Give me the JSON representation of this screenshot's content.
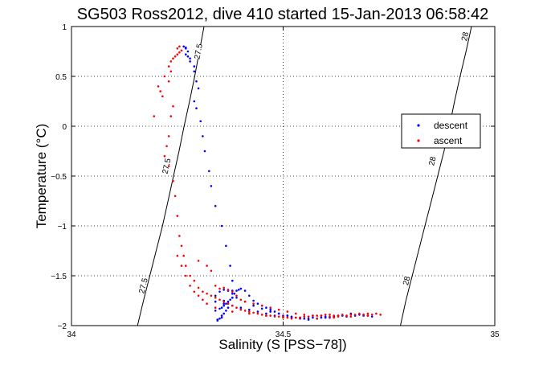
{
  "chart_data": {
    "type": "scatter",
    "title": "SG503 Ross2012, dive 410 started 15-Jan-2013 06:58:42",
    "xlabel": "Salinity (S [PSS−78])",
    "ylabel": "Temperature (°C)",
    "xlim": [
      34,
      35
    ],
    "ylim": [
      -2,
      1
    ],
    "xticks": [
      34,
      34.5,
      35
    ],
    "yticks": [
      -2,
      -1.5,
      -1,
      -0.5,
      0,
      0.5,
      1
    ],
    "xtick_labels": [
      "34",
      "34.5",
      "35"
    ],
    "ytick_labels": [
      "−2",
      "−1.5",
      "−1",
      "−0.5",
      "0",
      "0.5",
      "1"
    ],
    "grid": true,
    "legend_position": "right",
    "contours": [
      {
        "label": "27.5",
        "color": "#000000",
        "points": [
          [
            34.156,
            -2
          ],
          [
            34.17,
            -1.75
          ],
          [
            34.185,
            -1.5
          ],
          [
            34.2,
            -1.25
          ],
          [
            34.215,
            -1
          ],
          [
            34.228,
            -0.75
          ],
          [
            34.241,
            -0.5
          ],
          [
            34.254,
            -0.25
          ],
          [
            34.266,
            0
          ],
          [
            34.279,
            0.25
          ],
          [
            34.291,
            0.5
          ],
          [
            34.302,
            0.75
          ],
          [
            34.313,
            1
          ]
        ],
        "label_positions": [
          [
            34.17,
            -1.6
          ],
          [
            34.225,
            -0.4
          ],
          [
            34.3,
            0.75
          ]
        ]
      },
      {
        "label": "28",
        "color": "#000000",
        "points": [
          [
            34.777,
            -2
          ],
          [
            34.79,
            -1.75
          ],
          [
            34.805,
            -1.5
          ],
          [
            34.82,
            -1.25
          ],
          [
            34.835,
            -1
          ],
          [
            34.85,
            -0.75
          ],
          [
            34.865,
            -0.5
          ],
          [
            34.88,
            -0.25
          ],
          [
            34.893,
            0
          ],
          [
            34.905,
            0.25
          ],
          [
            34.918,
            0.5
          ],
          [
            34.932,
            0.75
          ],
          [
            34.945,
            1
          ]
        ],
        "label_positions": [
          [
            34.792,
            -1.55
          ],
          [
            34.853,
            -0.35
          ],
          [
            34.93,
            0.9
          ]
        ]
      }
    ],
    "series": [
      {
        "name": "descent",
        "color": "#0000ff",
        "marker": ".",
        "x": [
          34.265,
          34.27,
          34.27,
          34.275,
          34.27,
          34.275,
          34.28,
          34.28,
          34.29,
          34.29,
          34.295,
          34.3,
          34.29,
          34.295,
          34.305,
          34.31,
          34.315,
          34.325,
          34.33,
          34.34,
          34.355,
          34.365,
          34.375,
          34.38,
          34.38,
          34.38,
          34.36,
          34.37,
          34.37,
          34.365,
          34.36,
          34.355,
          34.355,
          34.35,
          34.345,
          34.345,
          34.34,
          34.35,
          34.355,
          34.36,
          34.365,
          34.37,
          34.375,
          34.38,
          34.385,
          34.39,
          34.395,
          34.4,
          34.41,
          34.42,
          34.43,
          34.44,
          34.45,
          34.46,
          34.47,
          34.48,
          34.49,
          34.5,
          34.51,
          34.52,
          34.53,
          34.54,
          34.55,
          34.56,
          34.57,
          34.58,
          34.59,
          34.6,
          34.61,
          34.62,
          34.63,
          34.65,
          34.67,
          34.69,
          34.71,
          34.69,
          34.7,
          34.68,
          34.66,
          34.64,
          34.62,
          34.6,
          34.58,
          34.56,
          34.54,
          34.52,
          34.5,
          34.48,
          34.46,
          34.44,
          34.42,
          34.4,
          34.38,
          34.36,
          34.34,
          34.34,
          34.35,
          34.36,
          34.37,
          34.38,
          34.39,
          34.41,
          34.43,
          34.45,
          34.47,
          34.49,
          34.51
        ],
        "y": [
          0.8,
          0.79,
          0.78,
          0.75,
          0.72,
          0.7,
          0.68,
          0.65,
          0.6,
          0.55,
          0.45,
          0.38,
          0.25,
          0.18,
          0.05,
          -0.1,
          -0.25,
          -0.45,
          -0.6,
          -0.8,
          -1.0,
          -1.2,
          -1.4,
          -1.55,
          -1.65,
          -1.72,
          -1.75,
          -1.78,
          -1.82,
          -1.85,
          -1.88,
          -1.9,
          -1.92,
          -1.93,
          -1.94,
          -1.95,
          -1.85,
          -1.83,
          -1.82,
          -1.8,
          -1.78,
          -1.76,
          -1.74,
          -1.72,
          -1.68,
          -1.65,
          -1.64,
          -1.63,
          -1.65,
          -1.7,
          -1.75,
          -1.78,
          -1.8,
          -1.82,
          -1.84,
          -1.86,
          -1.88,
          -1.9,
          -1.9,
          -1.91,
          -1.92,
          -1.92,
          -1.93,
          -1.93,
          -1.92,
          -1.93,
          -1.92,
          -1.91,
          -1.92,
          -1.91,
          -1.9,
          -1.91,
          -1.9,
          -1.9,
          -1.91,
          -1.89,
          -1.9,
          -1.89,
          -1.88,
          -1.9,
          -1.91,
          -1.92,
          -1.93,
          -1.94,
          -1.93,
          -1.92,
          -1.91,
          -1.9,
          -1.88,
          -1.86,
          -1.84,
          -1.82,
          -1.8,
          -1.78,
          -1.76,
          -1.7,
          -1.66,
          -1.64,
          -1.65,
          -1.68,
          -1.72,
          -1.76,
          -1.8,
          -1.83,
          -1.86,
          -1.88,
          -1.9
        ]
      },
      {
        "name": "ascent",
        "color": "#ff0000",
        "marker": ".",
        "x": [
          34.255,
          34.25,
          34.26,
          34.255,
          34.25,
          34.245,
          34.24,
          34.235,
          34.23,
          34.235,
          34.22,
          34.23,
          34.205,
          34.21,
          34.215,
          34.195,
          34.24,
          34.235,
          34.23,
          34.225,
          34.22,
          34.23,
          34.24,
          34.245,
          34.25,
          34.255,
          34.26,
          34.265,
          34.27,
          34.28,
          34.29,
          34.3,
          34.31,
          34.32,
          34.33,
          34.34,
          34.35,
          34.36,
          34.37,
          34.38,
          34.39,
          34.4,
          34.41,
          34.42,
          34.43,
          34.44,
          34.45,
          34.46,
          34.47,
          34.48,
          34.49,
          34.5,
          34.51,
          34.52,
          34.53,
          34.54,
          34.55,
          34.56,
          34.57,
          34.58,
          34.59,
          34.6,
          34.61,
          34.62,
          34.63,
          34.64,
          34.65,
          34.66,
          34.67,
          34.68,
          34.69,
          34.7,
          34.71,
          34.72,
          34.73,
          34.7,
          34.66,
          34.62,
          34.58,
          34.54,
          34.5,
          34.46,
          34.42,
          34.38,
          34.34,
          34.32,
          34.31,
          34.3,
          34.29,
          34.28,
          34.27,
          34.26,
          34.25,
          34.3,
          34.32,
          34.33,
          34.34,
          34.35,
          34.36,
          34.37,
          34.38,
          34.39,
          34.4,
          34.41,
          34.43,
          34.45,
          34.47,
          34.49,
          34.51,
          34.53,
          34.55,
          34.57,
          34.59,
          34.61,
          34.63
        ],
        "y": [
          0.8,
          0.78,
          0.76,
          0.74,
          0.72,
          0.7,
          0.68,
          0.65,
          0.6,
          0.55,
          0.5,
          0.45,
          0.4,
          0.35,
          0.3,
          0.1,
          0.2,
          0.1,
          -0.1,
          -0.2,
          -0.3,
          -0.4,
          -0.55,
          -0.7,
          -0.9,
          -1.1,
          -1.2,
          -1.3,
          -1.4,
          -1.5,
          -1.55,
          -1.62,
          -1.66,
          -1.68,
          -1.7,
          -1.72,
          -1.74,
          -1.76,
          -1.78,
          -1.8,
          -1.82,
          -1.84,
          -1.85,
          -1.86,
          -1.87,
          -1.88,
          -1.89,
          -1.9,
          -1.9,
          -1.91,
          -1.91,
          -1.92,
          -1.92,
          -1.93,
          -1.92,
          -1.92,
          -1.91,
          -1.91,
          -1.9,
          -1.9,
          -1.9,
          -1.89,
          -1.89,
          -1.9,
          -1.9,
          -1.89,
          -1.9,
          -1.89,
          -1.89,
          -1.88,
          -1.89,
          -1.88,
          -1.89,
          -1.88,
          -1.89,
          -1.9,
          -1.91,
          -1.92,
          -1.93,
          -1.92,
          -1.91,
          -1.9,
          -1.88,
          -1.86,
          -1.82,
          -1.78,
          -1.74,
          -1.7,
          -1.66,
          -1.6,
          -1.5,
          -1.4,
          -1.3,
          -1.35,
          -1.4,
          -1.45,
          -1.6,
          -1.63,
          -1.62,
          -1.64,
          -1.66,
          -1.7,
          -1.74,
          -1.76,
          -1.78,
          -1.8,
          -1.82,
          -1.84,
          -1.86,
          -1.88,
          -1.89,
          -1.9,
          -1.9,
          -1.91,
          -1.91
        ]
      }
    ]
  }
}
